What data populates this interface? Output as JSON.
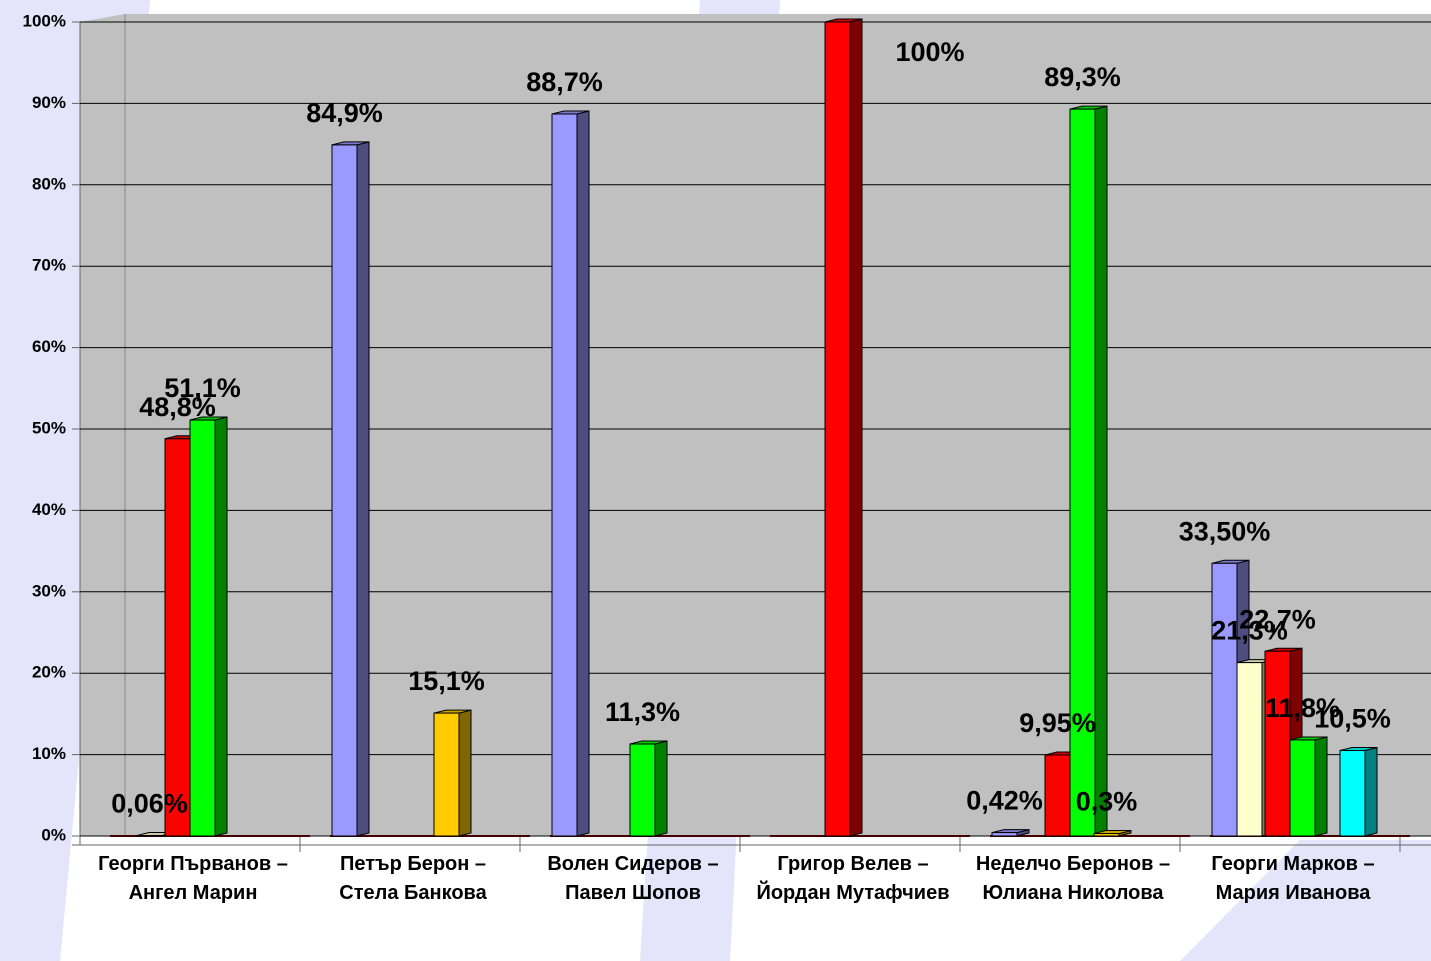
{
  "chart_data": {
    "type": "bar",
    "categories": [
      "Георги Първанов – Ангел Марин",
      "Петър Берон – Стела Банкова",
      "Волен Сидеров – Павел Шопов",
      "Григор Велев – Йордан Мутафчиев",
      "Неделчо Беронов – Юлиана Николова",
      "Георги Марков – Мария Иванова"
    ],
    "series": [
      {
        "color": "#9999ff",
        "values": [
          null,
          84.9,
          88.7,
          null,
          0.42,
          33.5
        ],
        "value_labels": [
          null,
          "84,9%",
          "88,7%",
          null,
          "0,42%",
          "33,50%"
        ]
      },
      {
        "color": "#ffffcc",
        "values": [
          0.06,
          null,
          null,
          null,
          null,
          21.3
        ],
        "value_labels": [
          "0,06%",
          null,
          null,
          null,
          null,
          "21,3%"
        ]
      },
      {
        "color": "#ff0000",
        "values": [
          48.8,
          null,
          null,
          100,
          9.95,
          22.7
        ],
        "value_labels": [
          "48,8%",
          null,
          null,
          "100%",
          "9,95%",
          "22,7%"
        ]
      },
      {
        "color": "#00ff00",
        "values": [
          51.1,
          null,
          11.3,
          null,
          89.3,
          11.8
        ],
        "value_labels": [
          "51,1%",
          null,
          "11,3%",
          null,
          "89,3%",
          "11,8%"
        ]
      },
      {
        "color": "#ffcc00",
        "values": [
          null,
          15.1,
          null,
          null,
          0.3,
          null
        ],
        "value_labels": [
          null,
          "15,1%",
          null,
          null,
          "0,3%",
          null
        ]
      },
      {
        "color": "#00ffff",
        "values": [
          null,
          null,
          null,
          null,
          null,
          10.5
        ],
        "value_labels": [
          null,
          null,
          null,
          null,
          null,
          "10,5%"
        ]
      }
    ],
    "ylim": [
      0,
      100
    ],
    "yticks": [
      {
        "value": 0,
        "label": "0%"
      },
      {
        "value": 10,
        "label": "10%"
      },
      {
        "value": 20,
        "label": "20%"
      },
      {
        "value": 30,
        "label": "30%"
      },
      {
        "value": 40,
        "label": "40%"
      },
      {
        "value": 50,
        "label": "50%"
      },
      {
        "value": 60,
        "label": "60%"
      },
      {
        "value": 70,
        "label": "70%"
      },
      {
        "value": 80,
        "label": "80%"
      },
      {
        "value": 90,
        "label": "90%"
      },
      {
        "value": 100,
        "label": "100%"
      }
    ],
    "grid": true
  }
}
